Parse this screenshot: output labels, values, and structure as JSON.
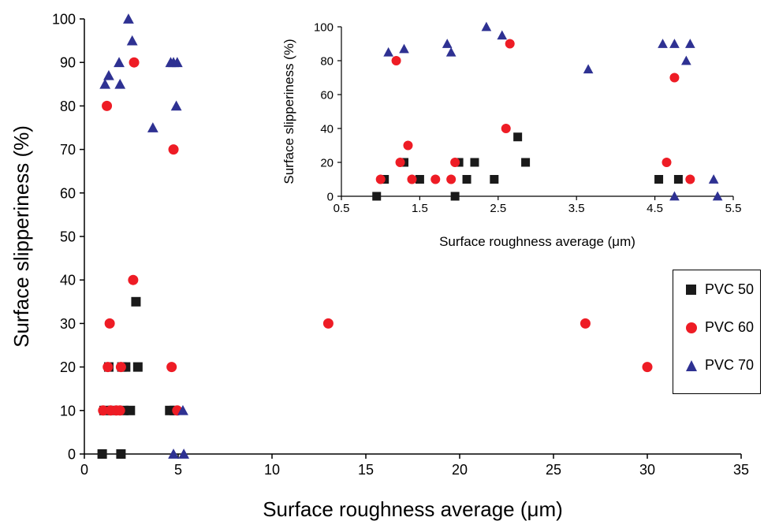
{
  "chart_data": [
    {
      "type": "scatter",
      "role": "main",
      "xlabel": "Surface roughness average (μm)",
      "ylabel": "Surface slipperiness (%)",
      "xlim": [
        0,
        35
      ],
      "ylim": [
        0,
        100
      ],
      "xticks": [
        "0",
        "5",
        "10",
        "15",
        "20",
        "25",
        "30",
        "35"
      ],
      "yticks": [
        "0",
        "10",
        "20",
        "30",
        "40",
        "50",
        "60",
        "70",
        "80",
        "90",
        "100"
      ],
      "grid": false,
      "legend_position": "right",
      "series": [
        {
          "name": "PVC 50",
          "marker": "square",
          "color": "#1a1a1a",
          "points": [
            [
              0.95,
              0
            ],
            [
              1.05,
              10
            ],
            [
              1.3,
              20
            ],
            [
              1.5,
              10
            ],
            [
              1.95,
              0
            ],
            [
              2.0,
              20
            ],
            [
              2.1,
              10
            ],
            [
              2.2,
              20
            ],
            [
              2.45,
              10
            ],
            [
              2.75,
              35
            ],
            [
              2.85,
              20
            ],
            [
              4.55,
              10
            ],
            [
              4.8,
              10
            ]
          ]
        },
        {
          "name": "PVC 60",
          "marker": "circle",
          "color": "#ee1c25",
          "points": [
            [
              1.0,
              10
            ],
            [
              1.2,
              80
            ],
            [
              1.25,
              20
            ],
            [
              1.35,
              30
            ],
            [
              1.4,
              10
            ],
            [
              1.7,
              10
            ],
            [
              1.95,
              20
            ],
            [
              1.9,
              10
            ],
            [
              2.6,
              40
            ],
            [
              2.65,
              90
            ],
            [
              4.65,
              20
            ],
            [
              4.75,
              70
            ],
            [
              4.95,
              10
            ],
            [
              13.0,
              30
            ],
            [
              26.7,
              30
            ],
            [
              30.0,
              20
            ]
          ]
        },
        {
          "name": "PVC 70",
          "marker": "triangle",
          "color": "#2e3192",
          "points": [
            [
              1.1,
              85
            ],
            [
              1.3,
              87
            ],
            [
              1.85,
              90
            ],
            [
              1.9,
              85
            ],
            [
              2.35,
              100
            ],
            [
              2.55,
              95
            ],
            [
              3.65,
              75
            ],
            [
              4.6,
              90
            ],
            [
              4.75,
              90
            ],
            [
              4.9,
              80
            ],
            [
              4.95,
              90
            ],
            [
              4.75,
              0
            ],
            [
              5.25,
              10
            ],
            [
              5.3,
              0
            ]
          ]
        }
      ]
    },
    {
      "type": "scatter",
      "role": "inset",
      "xlabel": "Surface roughness average (μm)",
      "ylabel": "Surface slipperiness (%)",
      "xlim": [
        0.5,
        5.5
      ],
      "ylim": [
        0,
        100
      ],
      "xticks": [
        "0.5",
        "1.5",
        "2.5",
        "3.5",
        "4.5",
        "5.5"
      ],
      "yticks": [
        "0",
        "20",
        "40",
        "60",
        "80",
        "100"
      ],
      "grid": false,
      "series_same_as_main": true
    }
  ]
}
